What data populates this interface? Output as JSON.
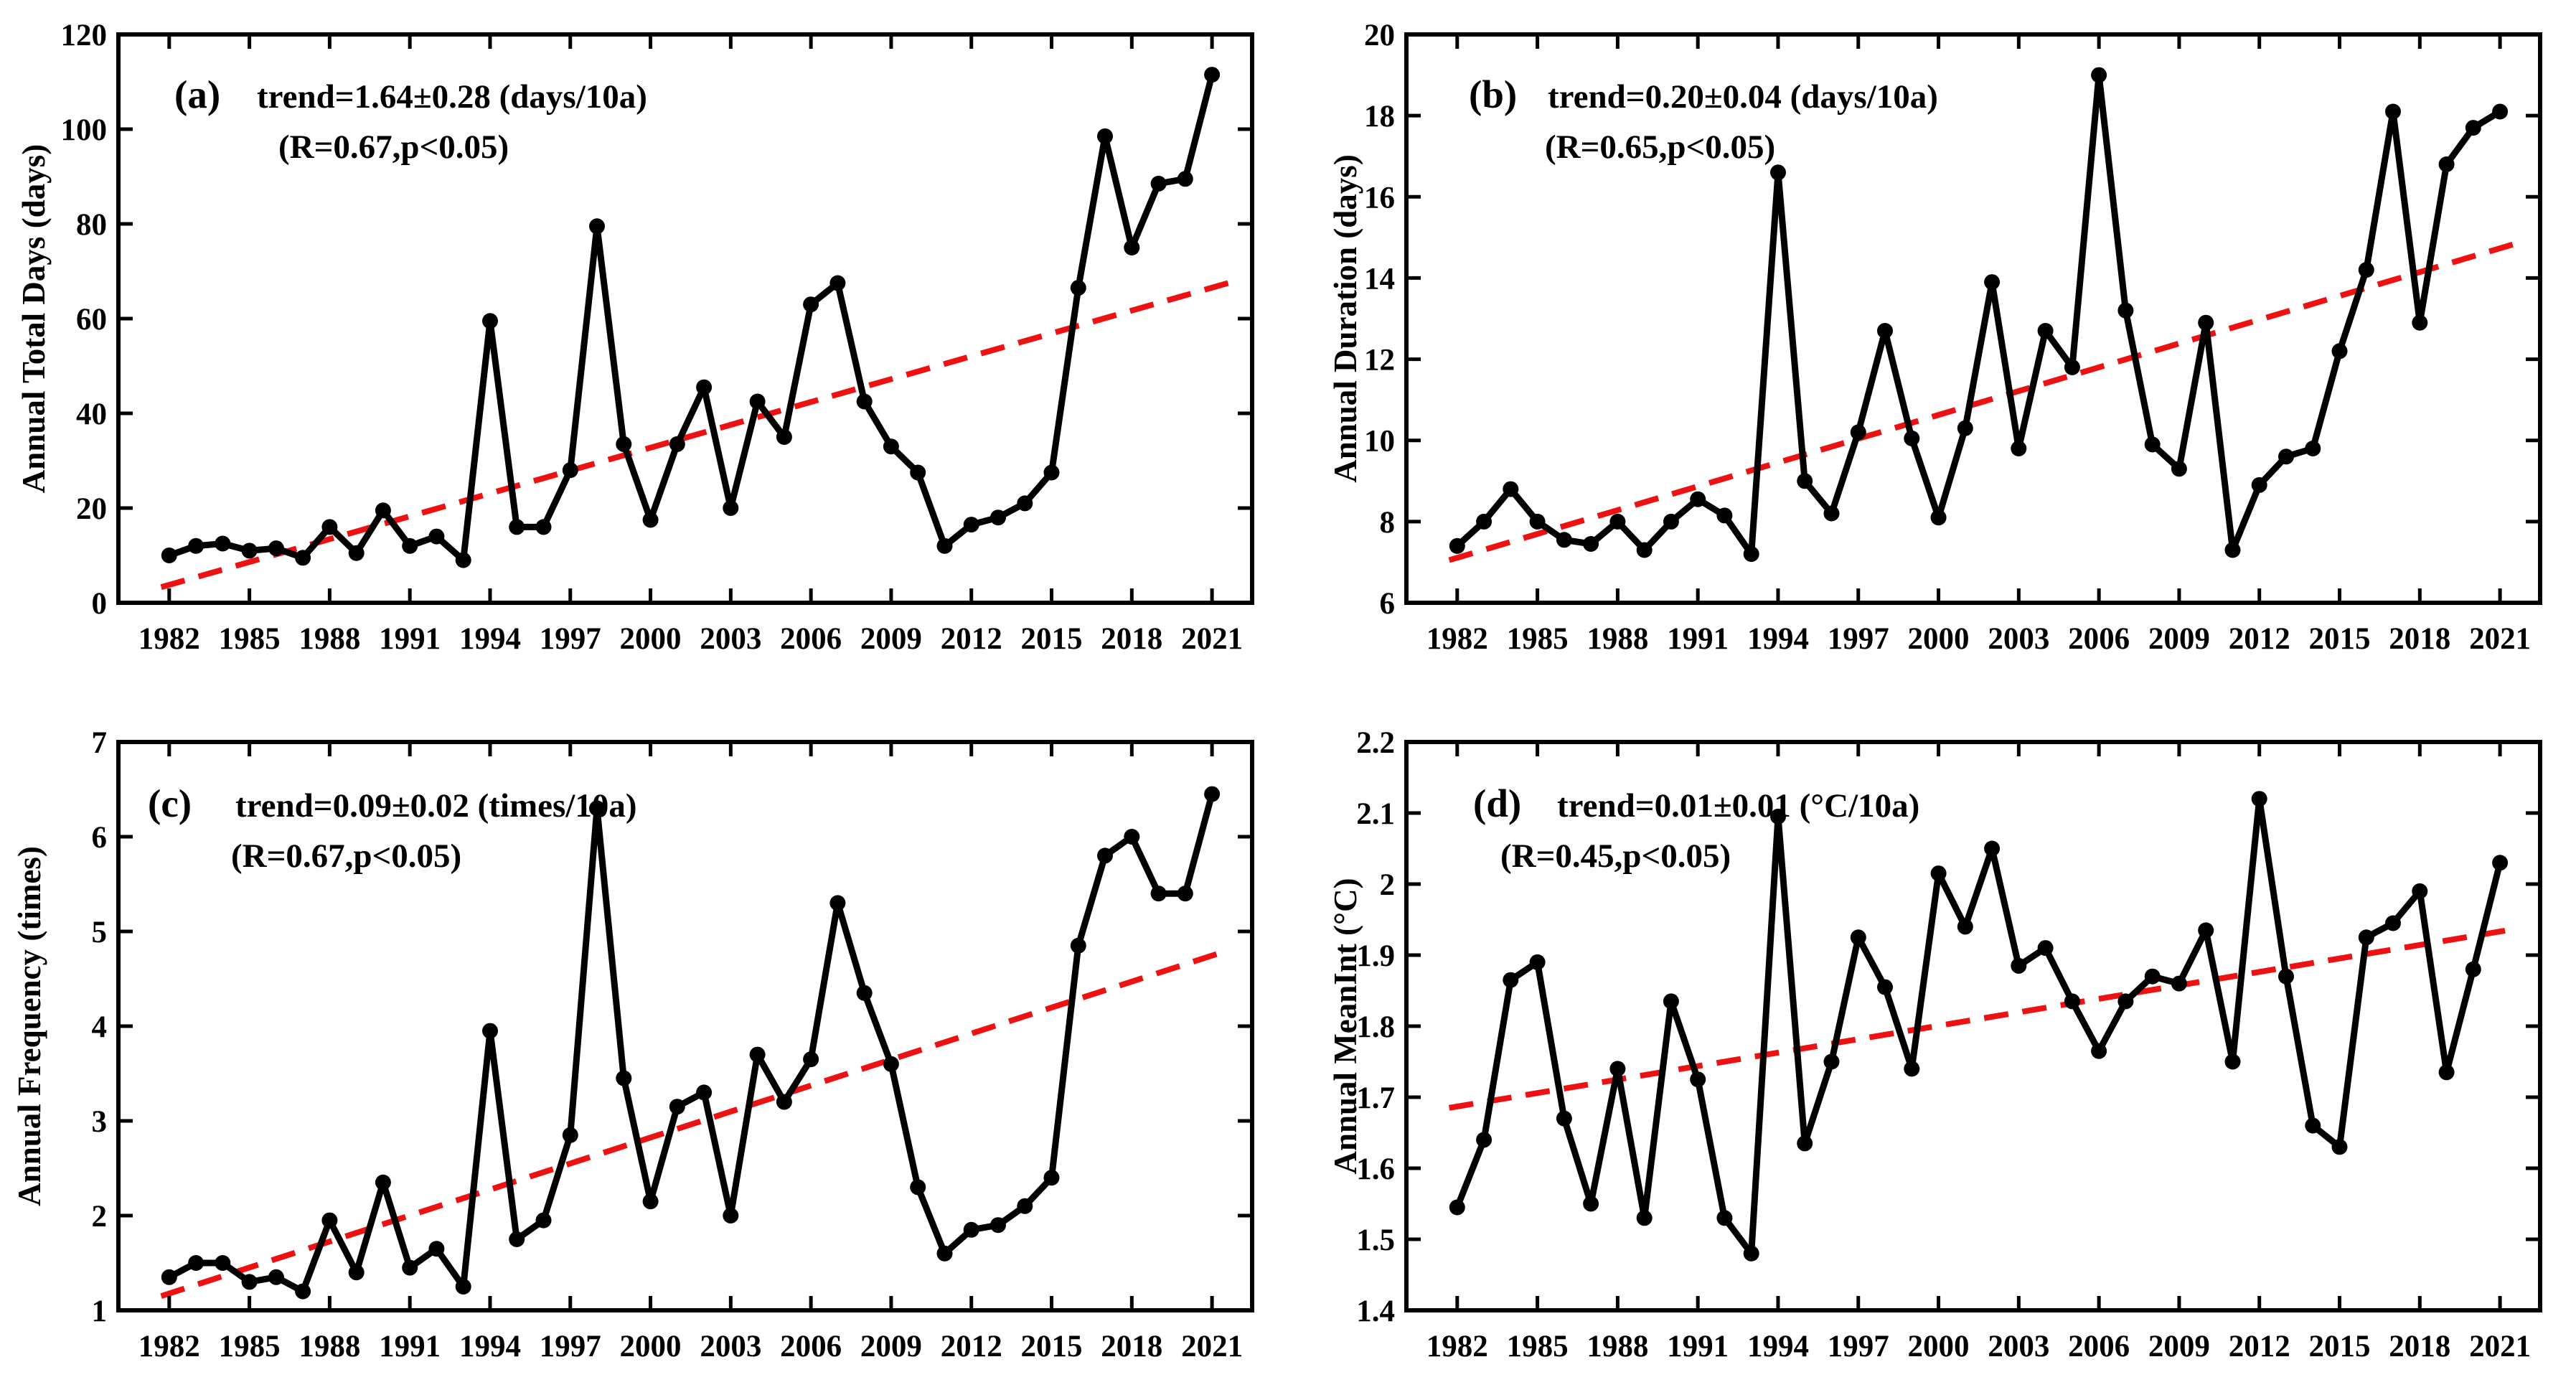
{
  "figure": {
    "background": "#ffffff",
    "line_color": "#000000",
    "marker_color": "#000000",
    "trend_color": "#ee1111"
  },
  "chart_data": [
    {
      "id": "a",
      "type": "line",
      "panel_label": "(a)",
      "annotation_line1": "trend=1.64±0.28 (days/10a)",
      "annotation_line2": "(R=0.67,p<0.05)",
      "ylabel": "Annual Total Days (days)",
      "x": [
        1982,
        1983,
        1984,
        1985,
        1986,
        1987,
        1988,
        1989,
        1990,
        1991,
        1992,
        1993,
        1994,
        1995,
        1996,
        1997,
        1998,
        1999,
        2000,
        2001,
        2002,
        2003,
        2004,
        2005,
        2006,
        2007,
        2008,
        2009,
        2010,
        2011,
        2012,
        2013,
        2014,
        2015,
        2016,
        2017,
        2018,
        2019,
        2020,
        2021
      ],
      "values": [
        10,
        12,
        12.5,
        11,
        11.5,
        9.5,
        16,
        10.5,
        19.5,
        12,
        14,
        9,
        59.5,
        16,
        16,
        28,
        79.5,
        33.5,
        17.5,
        33.5,
        45.5,
        20,
        42.5,
        35,
        63,
        67.5,
        42.5,
        33,
        27.5,
        12,
        16.5,
        18,
        21,
        27.5,
        66.5,
        98.5,
        75,
        88.5,
        89.5,
        111.5
      ],
      "trend_line": {
        "x1": 1981.7,
        "y1": 3.3,
        "x2": 2021.6,
        "y2": 67.5
      },
      "ylim": [
        0,
        120
      ],
      "yticks": [
        0,
        20,
        40,
        60,
        80,
        100,
        120
      ],
      "ytick_labels": [
        "0",
        "20",
        "40",
        "60",
        "80",
        "100",
        "120"
      ],
      "xticks": [
        1982,
        1985,
        1988,
        1991,
        1994,
        1997,
        2000,
        2003,
        2006,
        2009,
        2012,
        2015,
        2018,
        2021
      ],
      "xtick_labels": [
        "1982",
        "1985",
        "1988",
        "1991",
        "1994",
        "1997",
        "2000",
        "2003",
        "2006",
        "2009",
        "2012",
        "2015",
        "2018",
        "2021"
      ],
      "xlim": [
        1980.1,
        2022.5
      ],
      "grid": false,
      "legend": null
    },
    {
      "id": "b",
      "type": "line",
      "panel_label": "(b)",
      "annotation_line1": "trend=0.20±0.04 (days/10a)",
      "annotation_line2": "(R=0.65,p<0.05)",
      "ylabel": "Annual Duration (days)",
      "x": [
        1982,
        1983,
        1984,
        1985,
        1986,
        1987,
        1988,
        1989,
        1990,
        1991,
        1992,
        1993,
        1994,
        1995,
        1996,
        1997,
        1998,
        1999,
        2000,
        2001,
        2002,
        2003,
        2004,
        2005,
        2006,
        2007,
        2008,
        2009,
        2010,
        2011,
        2012,
        2013,
        2014,
        2015,
        2016,
        2017,
        2018,
        2019,
        2020,
        2021
      ],
      "values": [
        7.4,
        8.0,
        8.8,
        8.0,
        7.55,
        7.45,
        8.0,
        7.3,
        8.0,
        8.55,
        8.15,
        7.2,
        16.6,
        9.0,
        8.2,
        10.2,
        12.7,
        10.05,
        8.1,
        10.3,
        13.9,
        9.8,
        12.7,
        11.8,
        19.0,
        13.2,
        9.9,
        9.3,
        12.9,
        7.3,
        8.9,
        9.6,
        9.8,
        12.2,
        14.2,
        18.1,
        12.9,
        16.8,
        17.7,
        18.1
      ],
      "trend_line": {
        "x1": 1981.7,
        "y1": 7.05,
        "x2": 2021.6,
        "y2": 14.85
      },
      "ylim": [
        6,
        20
      ],
      "yticks": [
        6,
        8,
        10,
        12,
        14,
        16,
        18,
        20
      ],
      "ytick_labels": [
        "6",
        "8",
        "10",
        "12",
        "14",
        "16",
        "18",
        "20"
      ],
      "xticks": [
        1982,
        1985,
        1988,
        1991,
        1994,
        1997,
        2000,
        2003,
        2006,
        2009,
        2012,
        2015,
        2018,
        2021
      ],
      "xtick_labels": [
        "1982",
        "1985",
        "1988",
        "1991",
        "1994",
        "1997",
        "2000",
        "2003",
        "2006",
        "2009",
        "2012",
        "2015",
        "2018",
        "2021"
      ],
      "xlim": [
        1980.1,
        2022.5
      ],
      "grid": false,
      "legend": null
    },
    {
      "id": "c",
      "type": "line",
      "panel_label": "(c)",
      "annotation_line1": "trend=0.09±0.02 (times/10a)",
      "annotation_line2": "(R=0.67,p<0.05)",
      "ylabel": "Annual Frequency (times)",
      "x": [
        1982,
        1983,
        1984,
        1985,
        1986,
        1987,
        1988,
        1989,
        1990,
        1991,
        1992,
        1993,
        1994,
        1995,
        1996,
        1997,
        1998,
        1999,
        2000,
        2001,
        2002,
        2003,
        2004,
        2005,
        2006,
        2007,
        2008,
        2009,
        2010,
        2011,
        2012,
        2013,
        2014,
        2015,
        2016,
        2017,
        2018,
        2019,
        2020,
        2021
      ],
      "values": [
        1.35,
        1.5,
        1.5,
        1.3,
        1.35,
        1.2,
        1.95,
        1.4,
        2.35,
        1.45,
        1.65,
        1.25,
        3.95,
        1.75,
        1.95,
        2.85,
        6.3,
        3.45,
        2.15,
        3.15,
        3.3,
        2.0,
        3.7,
        3.2,
        3.65,
        5.3,
        4.35,
        3.6,
        2.3,
        1.6,
        1.85,
        1.9,
        2.1,
        2.4,
        4.85,
        5.8,
        6.0,
        5.4,
        5.4,
        6.45
      ],
      "trend_line": {
        "x1": 1981.7,
        "y1": 1.15,
        "x2": 2021.6,
        "y2": 4.8
      },
      "ylim": [
        1,
        7
      ],
      "yticks": [
        1,
        2,
        3,
        4,
        5,
        6,
        7
      ],
      "ytick_labels": [
        "1",
        "2",
        "3",
        "4",
        "5",
        "6",
        "7"
      ],
      "xticks": [
        1982,
        1985,
        1988,
        1991,
        1994,
        1997,
        2000,
        2003,
        2006,
        2009,
        2012,
        2015,
        2018,
        2021
      ],
      "xtick_labels": [
        "1982",
        "1985",
        "1988",
        "1991",
        "1994",
        "1997",
        "2000",
        "2003",
        "2006",
        "2009",
        "2012",
        "2015",
        "2018",
        "2021"
      ],
      "xlim": [
        1980.1,
        2022.5
      ],
      "grid": false,
      "legend": null
    },
    {
      "id": "d",
      "type": "line",
      "panel_label": "(d)",
      "annotation_line1": "trend=0.01±0.01 (°C/10a)",
      "annotation_line2": "(R=0.45,p<0.05)",
      "ylabel": "Annual MeanInt (°C)",
      "x": [
        1982,
        1983,
        1984,
        1985,
        1986,
        1987,
        1988,
        1989,
        1990,
        1991,
        1992,
        1993,
        1994,
        1995,
        1996,
        1997,
        1998,
        1999,
        2000,
        2001,
        2002,
        2003,
        2004,
        2005,
        2006,
        2007,
        2008,
        2009,
        2010,
        2011,
        2012,
        2013,
        2014,
        2015,
        2016,
        2017,
        2018,
        2019,
        2020,
        2021
      ],
      "values": [
        1.545,
        1.64,
        1.865,
        1.89,
        1.67,
        1.55,
        1.74,
        1.53,
        1.835,
        1.725,
        1.53,
        1.48,
        2.095,
        1.635,
        1.75,
        1.925,
        1.855,
        1.74,
        2.015,
        1.94,
        2.05,
        1.885,
        1.91,
        1.835,
        1.765,
        1.835,
        1.87,
        1.86,
        1.935,
        1.75,
        2.12,
        1.87,
        1.66,
        1.63,
        1.925,
        1.945,
        1.99,
        1.735,
        1.88,
        2.03
      ],
      "trend_line": {
        "x1": 1981.7,
        "y1": 1.685,
        "x2": 2021.6,
        "y2": 1.937
      },
      "ylim": [
        1.4,
        2.2
      ],
      "yticks": [
        1.4,
        1.5,
        1.6,
        1.7,
        1.8,
        1.9,
        2.0,
        2.1,
        2.2
      ],
      "ytick_labels": [
        "1.4",
        "1.5",
        "1.6",
        "1.7",
        "1.8",
        "1.9",
        "2",
        "2.1",
        "2.2"
      ],
      "xticks": [
        1982,
        1985,
        1988,
        1991,
        1994,
        1997,
        2000,
        2003,
        2006,
        2009,
        2012,
        2015,
        2018,
        2021
      ],
      "xtick_labels": [
        "1982",
        "1985",
        "1988",
        "1991",
        "1994",
        "1997",
        "2000",
        "2003",
        "2006",
        "2009",
        "2012",
        "2015",
        "2018",
        "2021"
      ],
      "xlim": [
        1980.1,
        2022.5
      ],
      "grid": false,
      "legend": null
    }
  ]
}
